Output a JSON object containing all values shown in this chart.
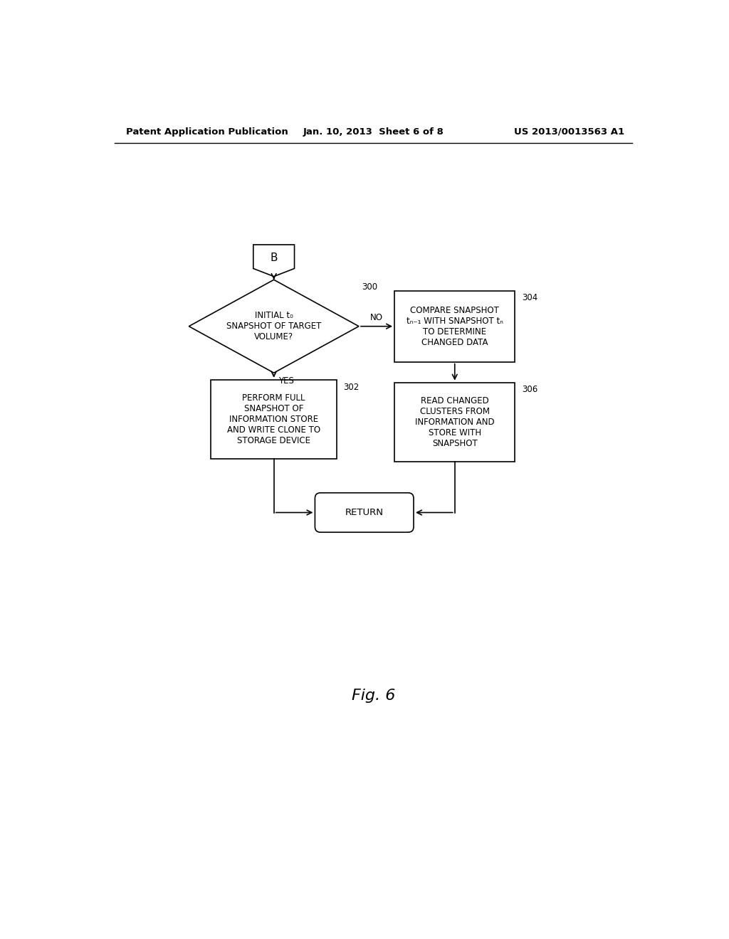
{
  "background_color": "#ffffff",
  "header_left": "Patent Application Publication",
  "header_center": "Jan. 10, 2013  Sheet 6 of 8",
  "header_right": "US 2013/0013563 A1",
  "caption": "Fig. 6",
  "connector_label": "B",
  "diamond_label": "INITIAL t₀\nSNAPSHOT OF TARGET\nVOLUME?",
  "diamond_label_num": "300",
  "box_left_label": "PERFORM FULL\nSNAPSHOT OF\nINFORMATION STORE\nAND WRITE CLONE TO\nSTORAGE DEVICE",
  "box_left_num": "302",
  "box_right_top_label": "COMPARE SNAPSHOT\ntₙ₋₁ WITH SNAPSHOT tₙ\nTO DETERMINE\nCHANGED DATA",
  "box_right_top_num": "304",
  "box_right_bot_label": "READ CHANGED\nCLUSTERS FROM\nINFORMATION AND\nSTORE WITH\nSNAPSHOT",
  "box_right_bot_num": "306",
  "return_label": "RETURN",
  "yes_label": "YES",
  "no_label": "NO",
  "font_size_body": 8.5,
  "font_size_header": 9.5,
  "font_size_caption": 16
}
